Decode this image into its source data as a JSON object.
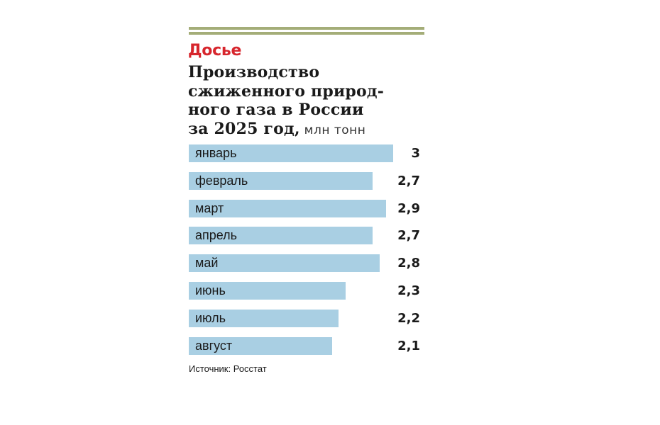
{
  "header": {
    "kicker": "Досье",
    "title_lines": [
      "Производство",
      "сжиженного природ-",
      "ного газа в России",
      "за 2025 год,"
    ],
    "unit": " млн тонн"
  },
  "colors": {
    "rule": "#a4ad78",
    "kicker": "#d7262d",
    "bar": "#a9cfe3",
    "text": "#1a1a1a"
  },
  "chart_data": {
    "type": "bar",
    "orientation": "horizontal",
    "categories": [
      "январь",
      "февраль",
      "март",
      "апрель",
      "май",
      "июнь",
      "июль",
      "август"
    ],
    "values": [
      3,
      2.7,
      2.9,
      2.7,
      2.8,
      2.3,
      2.2,
      2.1
    ],
    "value_labels": [
      "3",
      "2,7",
      "2,9",
      "2,7",
      "2,8",
      "2,3",
      "2,2",
      "2,1"
    ],
    "title": "Производство сжиженного природного газа в России за 2025 год, млн тонн",
    "xlim": [
      0,
      3
    ],
    "grid": false,
    "legend": "none"
  },
  "footer": {
    "source": "Источник: Росстат"
  }
}
